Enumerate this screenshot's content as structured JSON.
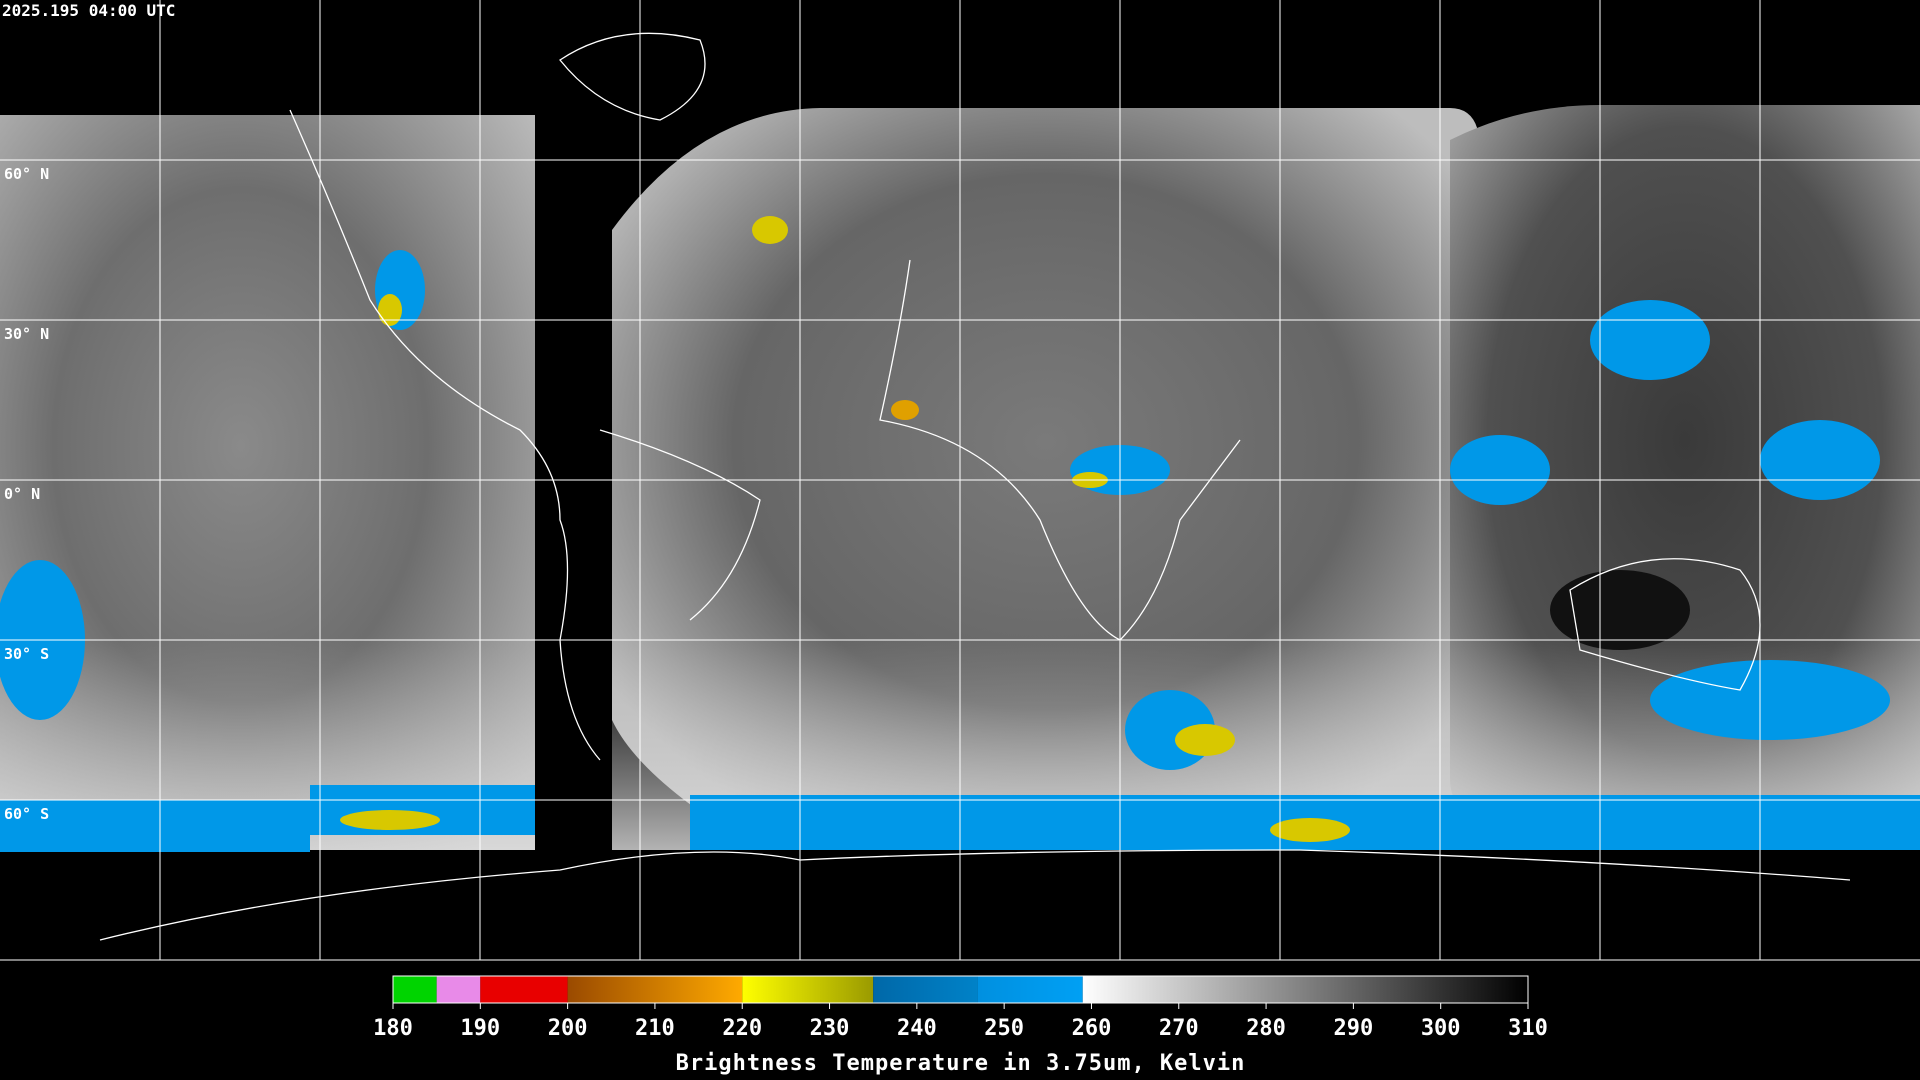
{
  "header": {
    "timestamp": "2025.195 04:00 UTC"
  },
  "map": {
    "lat_labels": [
      "60° N",
      "30° N",
      "0° N",
      "30° S",
      "60° S"
    ]
  },
  "colorbar": {
    "title": "Brightness Temperature in 3.75um, Kelvin",
    "lim": [
      180,
      310
    ],
    "ticks": [
      180,
      190,
      200,
      210,
      220,
      230,
      240,
      250,
      260,
      270,
      280,
      290,
      300,
      310
    ],
    "segments": [
      {
        "range": [
          180,
          185
        ],
        "colors": [
          "#00d400",
          "#00d400"
        ]
      },
      {
        "range": [
          185,
          190
        ],
        "colors": [
          "#e88ae8",
          "#e88ae8"
        ]
      },
      {
        "range": [
          190,
          200
        ],
        "colors": [
          "#e80000",
          "#e80000"
        ]
      },
      {
        "range": [
          200,
          220
        ],
        "colors": [
          "#9a4a00",
          "#ffaa00"
        ]
      },
      {
        "range": [
          220,
          235
        ],
        "colors": [
          "#ffff00",
          "#9a9a00"
        ]
      },
      {
        "range": [
          235,
          247
        ],
        "colors": [
          "#0068a8",
          "#0082c8"
        ]
      },
      {
        "range": [
          247,
          259
        ],
        "colors": [
          "#0090e0",
          "#00a0f4"
        ]
      },
      {
        "range": [
          259,
          310
        ],
        "colors": [
          "#ffffff",
          "#000000"
        ]
      }
    ]
  }
}
